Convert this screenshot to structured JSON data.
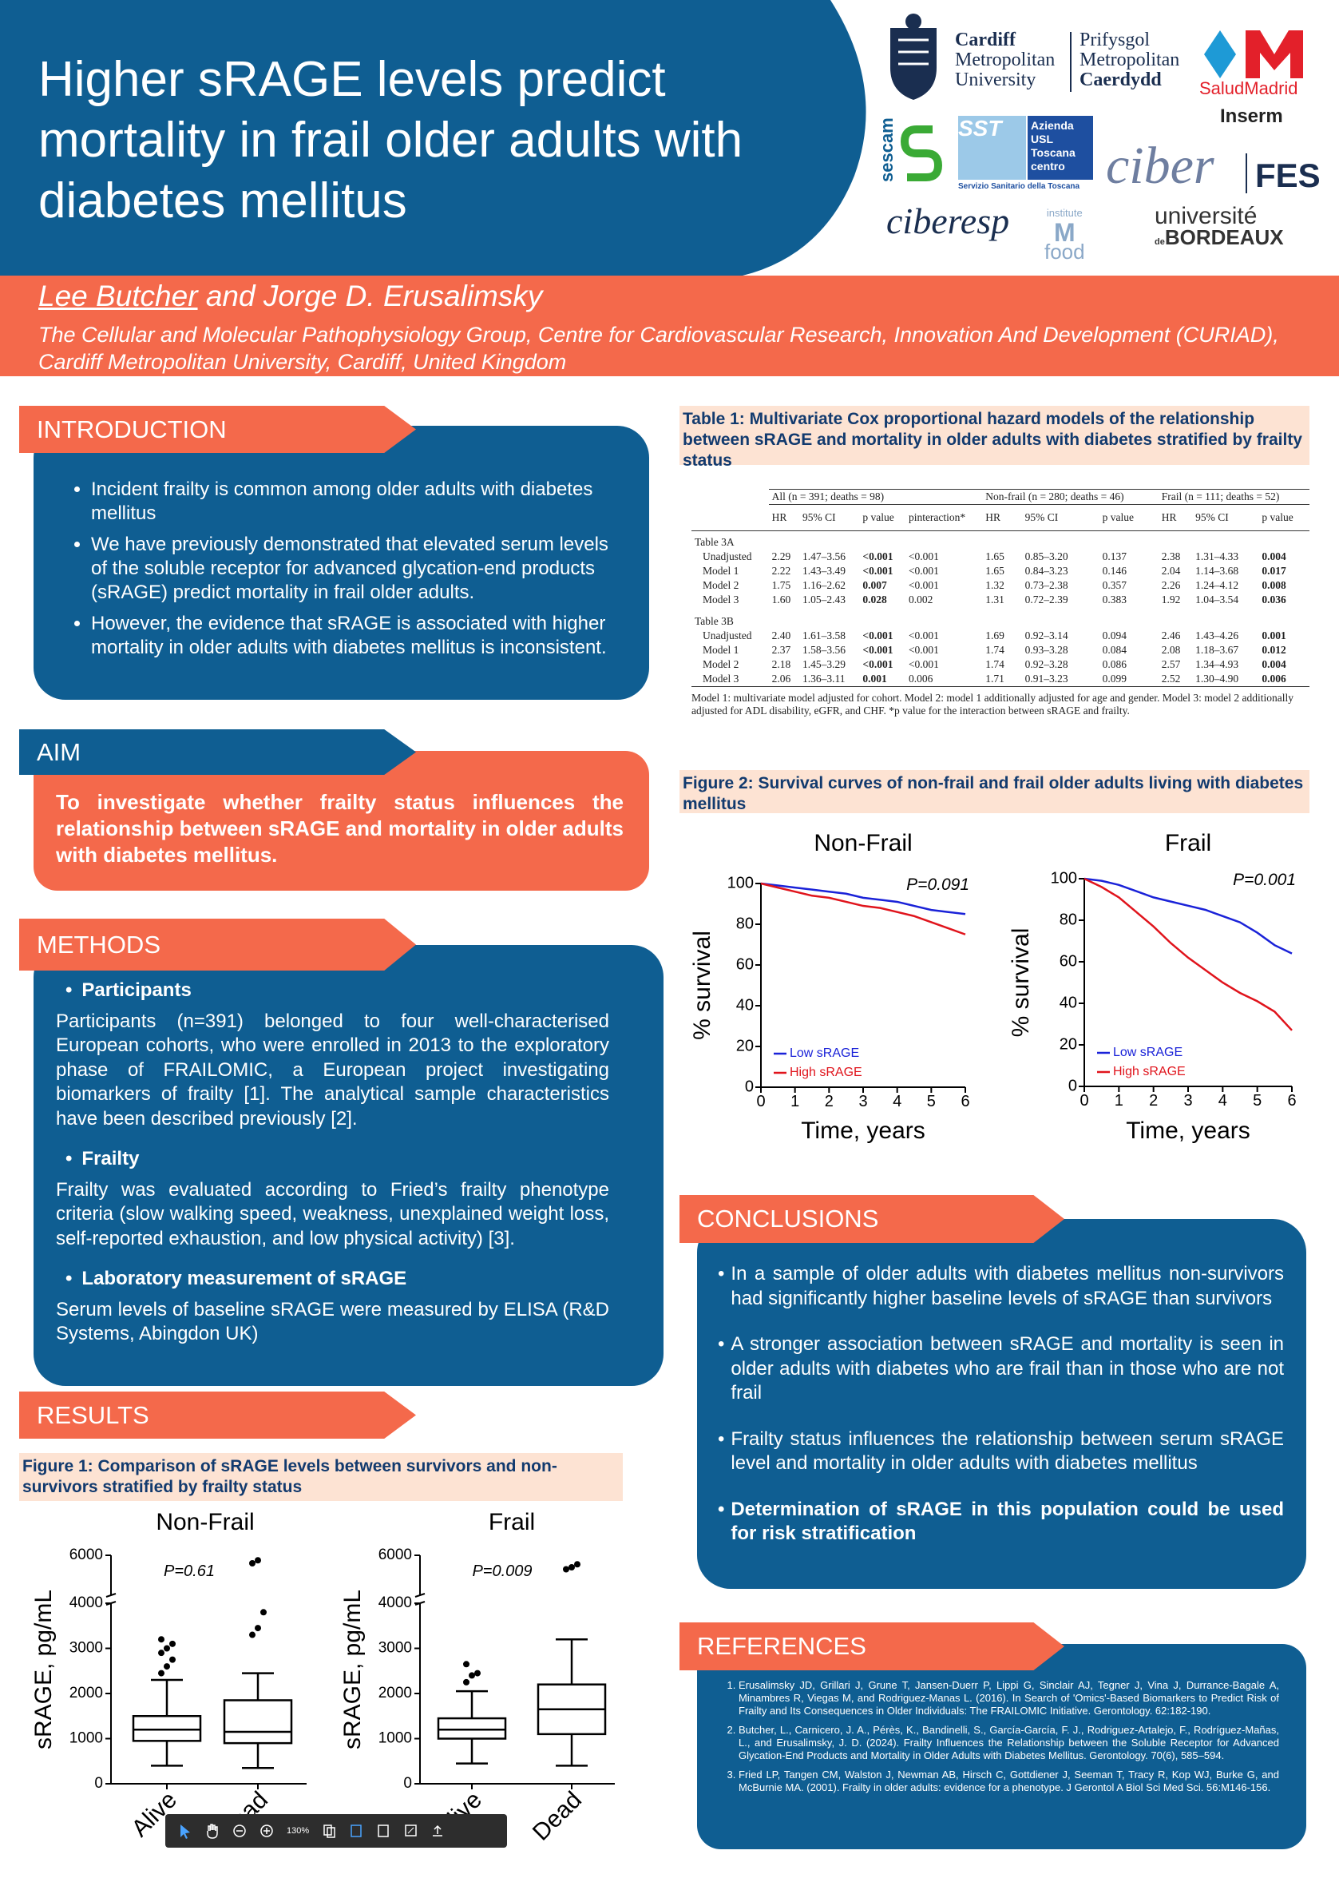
{
  "header": {
    "title": "Higher sRAGE levels predict mortality in frail older adults with diabetes mellitus"
  },
  "logos": {
    "cardiff": [
      "Cardiff",
      "Metropolitan",
      "University"
    ],
    "prifysgol": [
      "Prifysgol",
      "Metropolitan",
      "Caerdydd"
    ],
    "salud": "SaludMadrid",
    "inserm": "Inserm",
    "sescam": "sescam",
    "sst": "SST",
    "toscana": [
      "Azienda",
      "USL",
      "Toscana",
      "centro"
    ],
    "toscana_sub": "Servizio Sanitario della Toscana",
    "ciber": "ciber",
    "fes": "FES",
    "ciberesp": "ciberesp",
    "imfood": [
      "institute",
      "M",
      "food"
    ],
    "bordeaux": [
      "université",
      "de",
      "BORDEAUX"
    ]
  },
  "authors": {
    "presenter": "Lee Butcher",
    "others": "and Jorge D. Erusalimsky",
    "affiliation": "The Cellular and Molecular Pathophysiology Group, Centre for Cardiovascular Research, Innovation And Development (CURIAD), Cardiff Metropolitan University, Cardiff, United Kingdom"
  },
  "introduction": {
    "heading": "INTRODUCTION",
    "bullets": [
      "Incident frailty is common among older adults with diabetes mellitus",
      "We have previously demonstrated that elevated serum levels of the soluble receptor for advanced glycation-end products (sRAGE) predict mortality in frail older adults.",
      "However, the evidence that sRAGE is associated with higher mortality in older adults with diabetes mellitus is inconsistent."
    ]
  },
  "aim": {
    "heading": "AIM",
    "text": "To investigate whether frailty status influences the relationship between sRAGE and mortality in older adults with diabetes mellitus."
  },
  "methods": {
    "heading": "METHODS",
    "items": [
      {
        "title": "Participants",
        "text": "Participants (n=391) belonged to four well-characterised European cohorts, who were enrolled in 2013 to the exploratory phase of FRAILOMIC, a European project investigating biomarkers of frailty [1]. The analytical sample characteristics have been described previously [2]."
      },
      {
        "title": "Frailty",
        "text": "Frailty was evaluated according to Fried’s frailty phenotype criteria (slow walking speed, weakness, unexplained weight loss, self-reported exhaustion, and low physical activity) [3]."
      },
      {
        "title": "Laboratory measurement of sRAGE",
        "text": "Serum levels of baseline sRAGE were measured by ELISA (R&D Systems, Abingdon UK)"
      }
    ]
  },
  "results": {
    "heading": "RESULTS"
  },
  "figure1": {
    "caption": "Figure 1: Comparison of sRAGE levels between survivors and non-survivors stratified by frailty status",
    "charts": [
      {
        "type": "box",
        "title": "Non-Frail",
        "ylabel": "sRAGE, pg/mL",
        "annotation": "P=0.61",
        "categories": [
          "Alive",
          "Dead"
        ],
        "boxes": [
          {
            "whislo": 400,
            "q1": 950,
            "med": 1200,
            "q3": 1500,
            "whishi": 2300,
            "fliers": [
              2450,
              2600,
              2750,
              2900,
              3000,
              3100,
              3200
            ]
          },
          {
            "whislo": 350,
            "q1": 900,
            "med": 1150,
            "q3": 1850,
            "whishi": 2450,
            "fliers": [
              3300,
              3450,
              3800,
              5600,
              5750
            ]
          }
        ],
        "ylim": [
          0,
          6000
        ],
        "yticks": [
          0,
          1000,
          2000,
          3000,
          4000,
          6000
        ],
        "axis_break": [
          4000,
          6000
        ]
      },
      {
        "type": "box",
        "title": "Frail",
        "ylabel": "sRAGE, pg/mL",
        "annotation": "P=0.009",
        "categories": [
          "Alive",
          "Dead"
        ],
        "boxes": [
          {
            "whislo": 450,
            "q1": 1000,
            "med": 1200,
            "q3": 1450,
            "whishi": 2050,
            "fliers": [
              2250,
              2400,
              2450,
              2650
            ]
          },
          {
            "whislo": 400,
            "q1": 1100,
            "med": 1650,
            "q3": 2200,
            "whishi": 3200,
            "fliers": [
              5300,
              5400,
              5550
            ]
          }
        ],
        "ylim": [
          0,
          6000
        ],
        "yticks": [
          0,
          1000,
          2000,
          3000,
          4000,
          6000
        ],
        "axis_break": [
          4000,
          6000
        ]
      }
    ]
  },
  "table1": {
    "caption": "Table 1: Multivariate Cox proportional hazard models of the relationship between sRAGE and mortality in older adults with diabetes stratified by frailty status",
    "groups": [
      "All (n = 391; deaths = 98)",
      "Non-frail (n = 280; deaths = 46)",
      "Frail (n = 111; deaths = 52)"
    ],
    "columns": [
      "HR",
      "95% CI",
      "p value",
      "pinteraction*",
      "HR",
      "95% CI",
      "p value",
      "HR",
      "95% CI",
      "p value"
    ],
    "sections": [
      {
        "label": "Table 3A",
        "rows": [
          [
            "Unadjusted",
            "2.29",
            "1.47–3.56",
            "<0.001",
            "<0.001",
            "1.65",
            "0.85–3.20",
            "0.137",
            "2.38",
            "1.31–4.33",
            "0.004"
          ],
          [
            "Model 1",
            "2.22",
            "1.43–3.49",
            "<0.001",
            "<0.001",
            "1.65",
            "0.84–3.23",
            "0.146",
            "2.04",
            "1.14–3.68",
            "0.017"
          ],
          [
            "Model 2",
            "1.75",
            "1.16–2.62",
            "0.007",
            "<0.001",
            "1.32",
            "0.73–2.38",
            "0.357",
            "2.26",
            "1.24–4.12",
            "0.008"
          ],
          [
            "Model 3",
            "1.60",
            "1.05–2.43",
            "0.028",
            "0.002",
            "1.31",
            "0.72–2.39",
            "0.383",
            "1.92",
            "1.04–3.54",
            "0.036"
          ]
        ]
      },
      {
        "label": "Table 3B",
        "rows": [
          [
            "Unadjusted",
            "2.40",
            "1.61–3.58",
            "<0.001",
            "<0.001",
            "1.69",
            "0.92–3.14",
            "0.094",
            "2.46",
            "1.43–4.26",
            "0.001"
          ],
          [
            "Model 1",
            "2.37",
            "1.58–3.56",
            "<0.001",
            "<0.001",
            "1.74",
            "0.93–3.28",
            "0.084",
            "2.08",
            "1.18–3.67",
            "0.012"
          ],
          [
            "Model 2",
            "2.18",
            "1.45–3.29",
            "<0.001",
            "<0.001",
            "1.74",
            "0.92–3.28",
            "0.086",
            "2.57",
            "1.34–4.93",
            "0.004"
          ],
          [
            "Model 3",
            "2.06",
            "1.36–3.11",
            "0.001",
            "0.006",
            "1.71",
            "0.91–3.23",
            "0.099",
            "2.52",
            "1.30–4.90",
            "0.006"
          ]
        ]
      }
    ],
    "footnote": "Model 1: multivariate model adjusted for cohort. Model 2: model 1 additionally adjusted for age and gender. Model 3: model 2 additionally adjusted for ADL disability, eGFR, and CHF. *p value for the interaction between sRAGE and frailty."
  },
  "figure2": {
    "caption": "Figure 2: Survival curves of non-frail and frail older adults living with diabetes mellitus",
    "charts": [
      {
        "type": "line",
        "title": "Non-Frail",
        "xlabel": "Time, years",
        "ylabel": "% survival",
        "annotation": "P=0.091",
        "x": [
          0,
          0.5,
          1,
          1.5,
          2,
          2.5,
          3,
          3.5,
          4,
          4.5,
          5,
          5.5,
          6
        ],
        "series": [
          {
            "name": "Low sRAGE",
            "color": "#1a22d8",
            "values": [
              100,
              99,
              98,
              97,
              96,
              95,
              93,
              92,
              91,
              89,
              87,
              86,
              85
            ]
          },
          {
            "name": "High sRAGE",
            "color": "#e0141c",
            "values": [
              100,
              98,
              96,
              94,
              93,
              91,
              89,
              88,
              86,
              84,
              81,
              78,
              75
            ]
          }
        ],
        "xlim": [
          0,
          6
        ],
        "xticks": [
          0,
          1,
          2,
          3,
          4,
          5,
          6
        ],
        "ylim": [
          0,
          100
        ],
        "yticks": [
          0,
          20,
          40,
          60,
          80,
          100
        ],
        "legend": "lower left"
      },
      {
        "type": "line",
        "title": "Frail",
        "xlabel": "Time, years",
        "ylabel": "% survival",
        "annotation": "P=0.001",
        "x": [
          0,
          0.5,
          1,
          1.5,
          2,
          2.5,
          3,
          3.5,
          4,
          4.5,
          5,
          5.5,
          6
        ],
        "series": [
          {
            "name": "Low sRAGE",
            "color": "#1a22d8",
            "values": [
              100,
              99,
              97,
              94,
              91,
              89,
              87,
              85,
              82,
              79,
              74,
              68,
              64
            ]
          },
          {
            "name": "High sRAGE",
            "color": "#e0141c",
            "values": [
              100,
              96,
              91,
              84,
              77,
              69,
              62,
              56,
              50,
              45,
              41,
              36,
              27
            ]
          }
        ],
        "xlim": [
          0,
          6
        ],
        "xticks": [
          0,
          1,
          2,
          3,
          4,
          5,
          6
        ],
        "ylim": [
          0,
          100
        ],
        "yticks": [
          0,
          20,
          40,
          60,
          80,
          100
        ],
        "legend": "lower left"
      }
    ]
  },
  "conclusions": {
    "heading": "CONCLUSIONS",
    "bullets": [
      "In a sample of older adults with diabetes mellitus non-survivors had significantly higher baseline levels of sRAGE than survivors",
      "A stronger association between sRAGE and mortality is seen in older adults with diabetes who are frail than in those who are not frail",
      "Frailty status influences the relationship between serum sRAGE level and mortality in older adults with diabetes mellitus",
      "Determination of sRAGE in this population could be used for risk stratification"
    ]
  },
  "references": {
    "heading": "REFERENCES",
    "items": [
      "Erusalimsky JD, Grillari J, Grune T, Jansen-Duerr P, Lippi G, Sinclair AJ, Tegner J, Vina J, Durrance-Bagale A, Minambres R, Viegas M, and Rodriguez-Manas L. (2016). In Search of 'Omics'-Based Biomarkers to Predict Risk of Frailty and Its Consequences in Older Individuals: The FRAILOMIC Initiative. Gerontology. 62:182-190.",
      "Butcher, L., Carnicero, J. A., Pérès, K., Bandinelli, S., García-García, F. J., Rodriguez-Artalejo, F., Rodríguez-Mañas, L., and Erusalimsky, J. D. (2024). Frailty Influences the Relationship between the Soluble Receptor for Advanced Glycation-End Products and Mortality in Older Adults with Diabetes Mellitus. Gerontology. 70(6), 585–594.",
      "Fried LP, Tangen CM, Walston J, Newman AB, Hirsch C, Gottdiener J, Seeman T, Tracy R, Kop WJ, Burke G, and McBurnie MA. (2001). Frailty in older adults: evidence for a phenotype. J Gerontol A Biol Sci Med Sci. 56:M146-156."
    ]
  },
  "toolbar": {
    "zoom": "130%"
  }
}
